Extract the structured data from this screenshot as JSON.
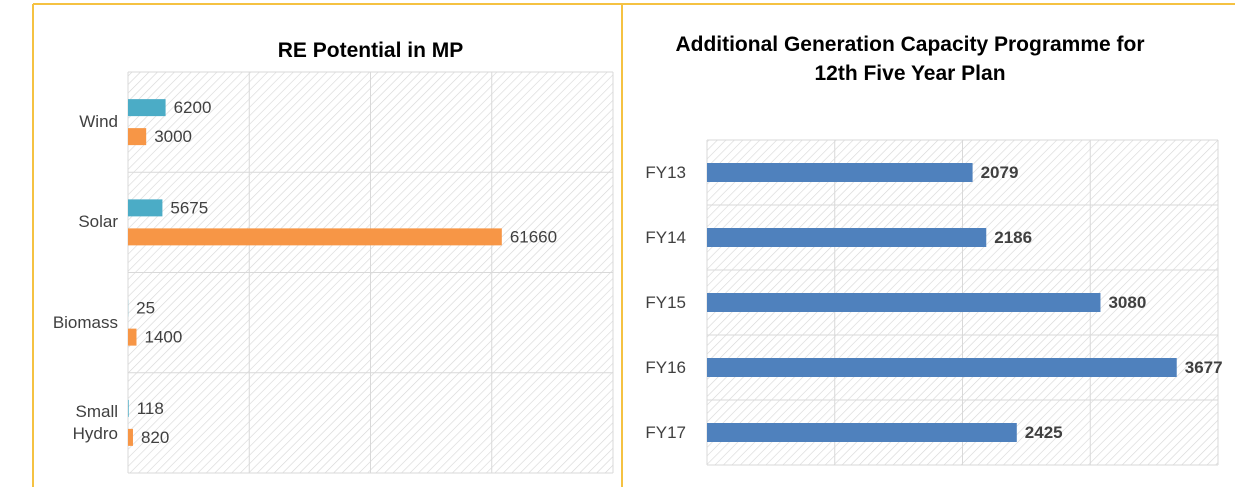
{
  "chart_data": [
    {
      "type": "hbar",
      "title": "RE Potential in MP",
      "categories": [
        "Wind",
        "Solar",
        "Biomass",
        "Small Hydro"
      ],
      "series": [
        {
          "color": "#4bacc6",
          "values": [
            6200,
            5675,
            25,
            118
          ]
        },
        {
          "color": "#f79646",
          "values": [
            3000,
            61660,
            1400,
            820
          ]
        }
      ],
      "xlim": [
        0,
        80000
      ],
      "xticks": [
        0,
        20000,
        40000,
        60000,
        80000
      ],
      "grid": true
    },
    {
      "type": "hbar",
      "title": "Additional Generation Capacity Programme for 12th Five Year Plan",
      "categories": [
        "FY13",
        "FY14",
        "FY15",
        "FY16",
        "FY17"
      ],
      "series": [
        {
          "color": "#4f81bd",
          "values": [
            2079,
            2186,
            3080,
            3677,
            2425
          ]
        }
      ],
      "xlim": [
        0,
        4000
      ],
      "xticks": [
        0,
        1000,
        2000,
        3000,
        4000
      ],
      "grid": true,
      "label_bold": true
    }
  ]
}
